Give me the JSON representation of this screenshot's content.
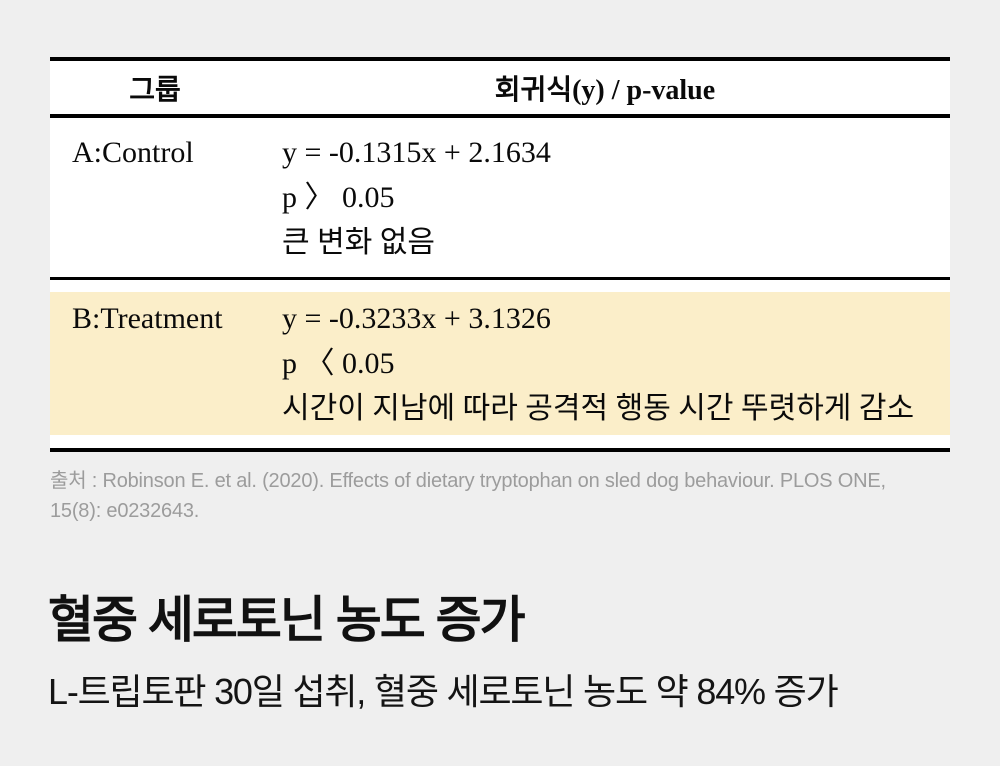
{
  "page": {
    "background_color": "#efefef",
    "text_color": "#0a0a0a",
    "citation_color": "#9c9c9c"
  },
  "table": {
    "columns": [
      "그룹",
      "회귀식(y) / p-value"
    ],
    "highlight_color": "#fbeec9",
    "rows": [
      {
        "group": "A:Control",
        "equation": "y = -0.1315x + 2.1634",
        "p_value": "p 〉 0.05",
        "interpretation": "큰 변화 없음",
        "highlighted": false
      },
      {
        "group": "B:Treatment",
        "equation": "y = -0.3233x + 3.1326",
        "p_value": "p 〈 0.05",
        "interpretation": "시간이 지남에 따라 공격적 행동 시간 뚜렷하게 감소",
        "highlighted": true
      }
    ]
  },
  "citation": {
    "lines": [
      "출처 : Robinson E. et al. (2020). Effects of dietary tryptophan on sled dog behaviour. PLOS ONE,",
      "15(8): e0232643."
    ]
  },
  "heading": {
    "title": "혈중 세로토닌 농도 증가",
    "subtitle": "L-트립토판 30일 섭취, 혈중 세로토닌 농도 약 84% 증가"
  }
}
